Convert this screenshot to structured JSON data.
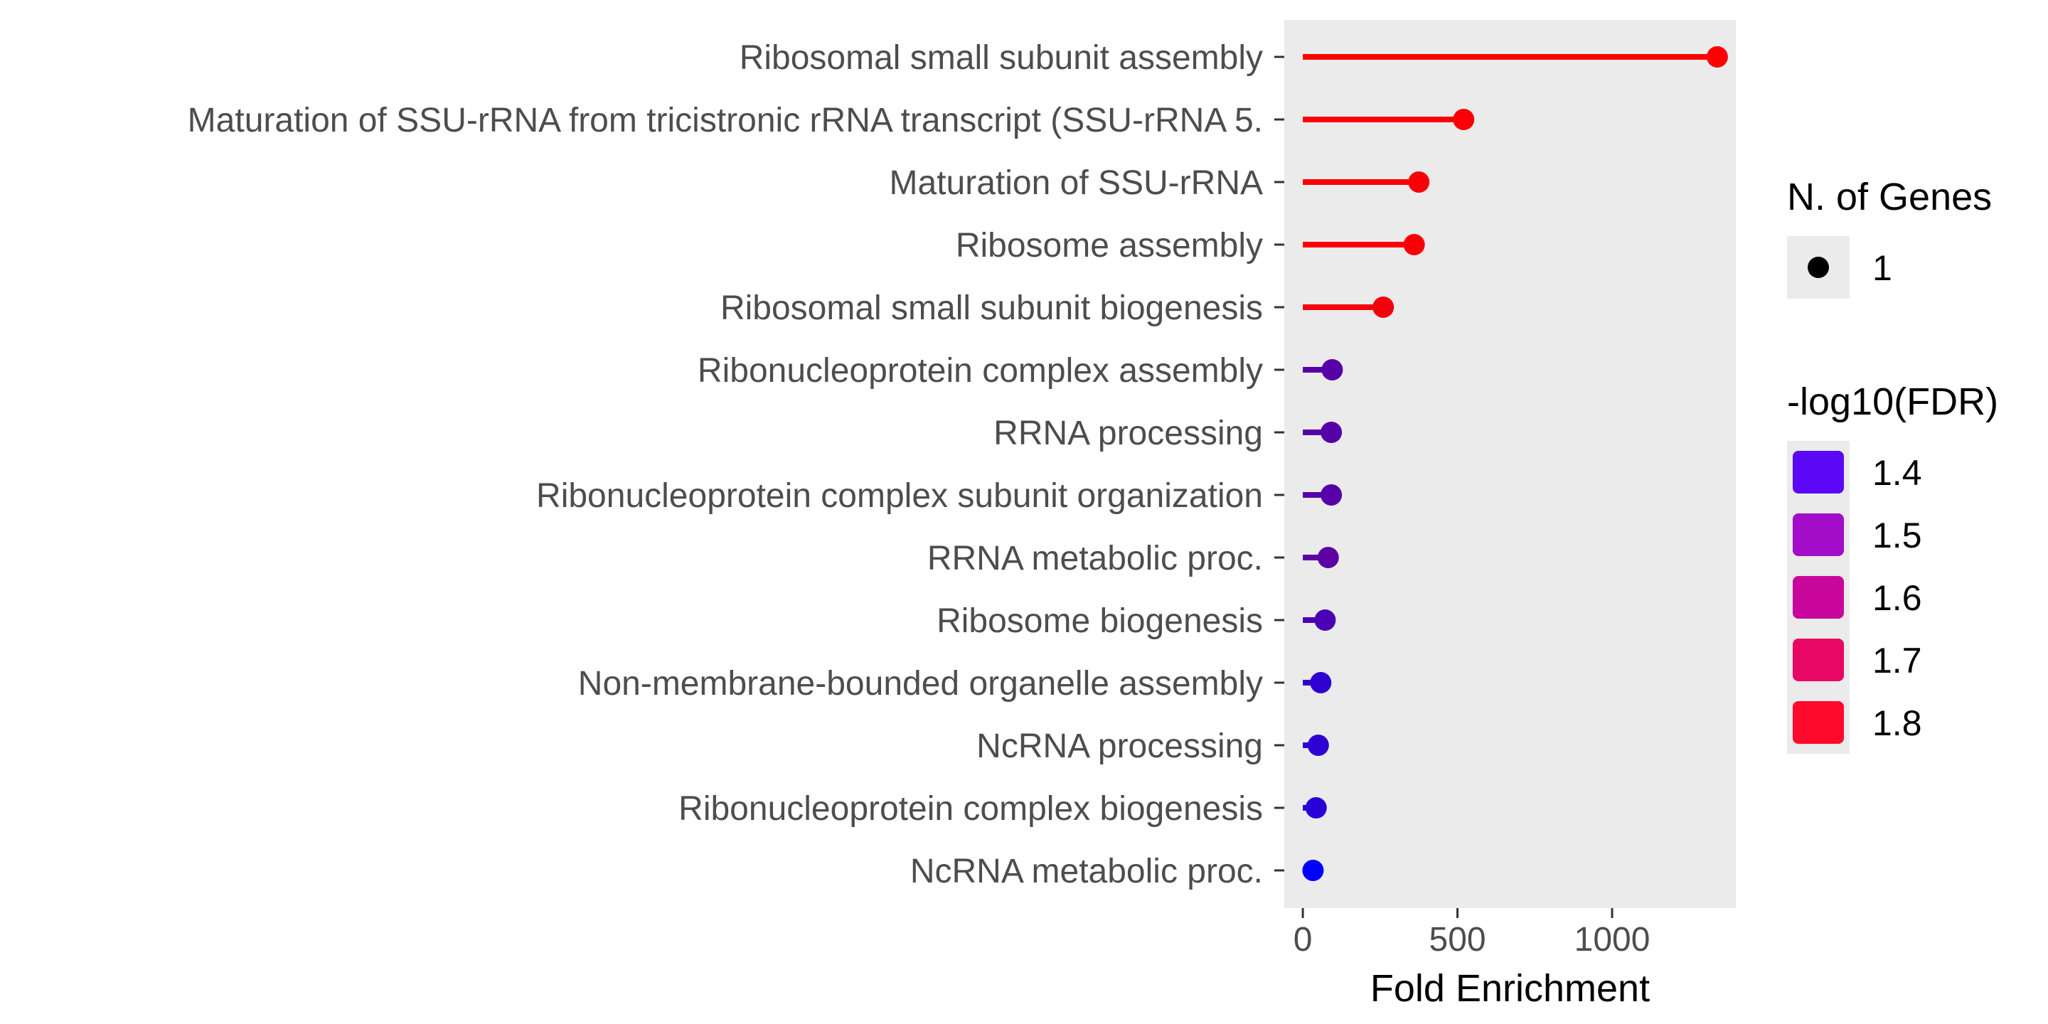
{
  "chart_data": {
    "type": "lollipop",
    "xlabel": "Fold Enrichment",
    "xlim": [
      -60,
      1400
    ],
    "x_ticks": [
      0,
      500,
      1000
    ],
    "x_tick_labels": [
      "0",
      "500",
      "1000"
    ],
    "grid": false,
    "panel_background": "#ebebeb",
    "categories": [
      "Ribosomal small subunit assembly",
      "Maturation of SSU-rRNA from tricistronic rRNA transcript (SSU-rRNA 5.",
      "Maturation of SSU-rRNA",
      "Ribosome assembly",
      "Ribosomal small subunit biogenesis",
      "Ribonucleoprotein complex assembly",
      "RRNA processing",
      "Ribonucleoprotein complex subunit organization",
      "RRNA metabolic proc.",
      "Ribosome biogenesis",
      "Non-membrane-bounded organelle assembly",
      "NcRNA processing",
      "Ribonucleoprotein complex biogenesis",
      "NcRNA metabolic proc."
    ],
    "values": [
      1340,
      520,
      375,
      360,
      260,
      95,
      92,
      92,
      82,
      72,
      58,
      50,
      43,
      33
    ],
    "neg_log10_fdr": [
      1.84,
      1.83,
      1.83,
      1.83,
      1.82,
      1.55,
      1.55,
      1.55,
      1.56,
      1.53,
      1.48,
      1.48,
      1.47,
      1.4
    ],
    "n_genes": [
      1,
      1,
      1,
      1,
      1,
      1,
      1,
      1,
      1,
      1,
      1,
      1,
      1,
      1
    ],
    "legend": {
      "position": "right",
      "size": {
        "title": "N. of Genes",
        "entries": [
          "1"
        ]
      },
      "color": {
        "title": "-log10(FDR)",
        "entries": [
          {
            "label": "1.4",
            "color": "#5a08f5"
          },
          {
            "label": "1.5",
            "color": "#a30cc8"
          },
          {
            "label": "1.6",
            "color": "#c8069b"
          },
          {
            "label": "1.7",
            "color": "#e80765"
          },
          {
            "label": "1.8",
            "color": "#fe0a2d"
          }
        ]
      }
    },
    "colors": {
      "scale_low": "#0000ff",
      "scale_high": "#ff0000",
      "size_point": "#000000",
      "legend_key_bg": "#ebebeb"
    }
  }
}
